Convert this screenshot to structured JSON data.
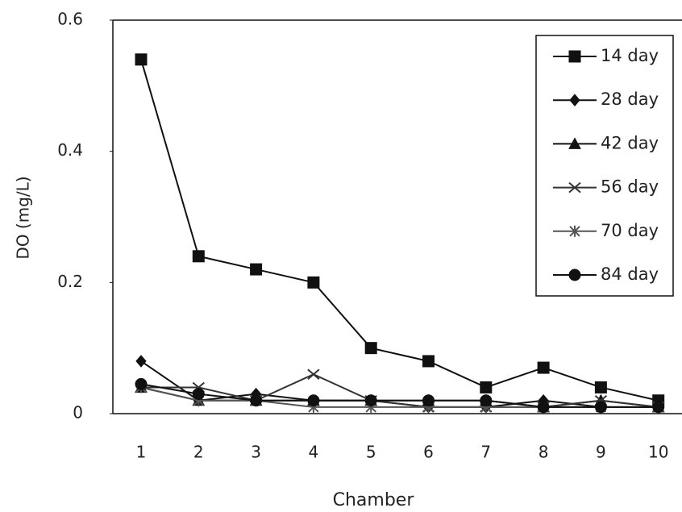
{
  "chart_data": {
    "type": "line",
    "xlabel": "Chamber",
    "ylabel": "DO (mg/L)",
    "categories": [
      "1",
      "2",
      "3",
      "4",
      "5",
      "6",
      "7",
      "8",
      "9",
      "10"
    ],
    "ylim": [
      0,
      0.6
    ],
    "yticks": [
      0,
      0.2,
      0.4,
      0.6
    ],
    "series": [
      {
        "name": "14 day",
        "color": "#111111",
        "marker": "square",
        "values": [
          0.54,
          0.24,
          0.22,
          0.2,
          0.1,
          0.08,
          0.04,
          0.07,
          0.04,
          0.02
        ]
      },
      {
        "name": "28 day",
        "color": "#111111",
        "marker": "diamond",
        "values": [
          0.08,
          0.02,
          0.03,
          0.02,
          0.02,
          0.01,
          0.01,
          0.02,
          0.01,
          0.01
        ]
      },
      {
        "name": "42 day",
        "color": "#111111",
        "marker": "triangle",
        "values": [
          0.04,
          0.02,
          0.02,
          0.02,
          0.02,
          0.02,
          0.02,
          0.01,
          0.02,
          0.01
        ]
      },
      {
        "name": "56 day",
        "color": "#333333",
        "marker": "x",
        "values": [
          0.04,
          0.04,
          0.02,
          0.06,
          0.02,
          0.01,
          0.01,
          0.01,
          0.02,
          0.01
        ]
      },
      {
        "name": "70 day",
        "color": "#555555",
        "marker": "star",
        "values": [
          0.04,
          0.02,
          0.02,
          0.01,
          0.01,
          0.01,
          0.01,
          0.01,
          0.01,
          0.01
        ]
      },
      {
        "name": "84 day",
        "color": "#111111",
        "marker": "circle",
        "values": [
          0.045,
          0.03,
          0.02,
          0.02,
          0.02,
          0.02,
          0.02,
          0.01,
          0.01,
          0.01
        ]
      }
    ]
  }
}
